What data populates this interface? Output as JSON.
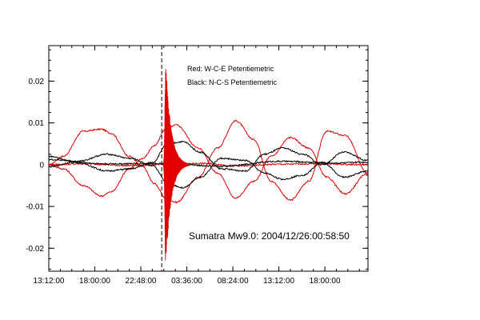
{
  "chart_data": {
    "type": "line",
    "title": "",
    "xlabel": "",
    "ylabel": "",
    "x_tick_labels": [
      "13:12:00",
      "18:00:00",
      "22:48:00",
      "03:36:00",
      "08:24:00",
      "13:12:00",
      "18:00:00"
    ],
    "x_unit": "hours since 2004/12/25 13:12:00",
    "x_ticks_hours": [
      0,
      4.8,
      9.6,
      14.4,
      19.2,
      24.0,
      28.8
    ],
    "xlim": [
      0,
      33.3
    ],
    "y_tick_labels": [
      "-0.02",
      "-0.01",
      "0",
      "0.01",
      "0.02"
    ],
    "y_ticks": [
      -0.02,
      -0.01,
      0,
      0.01,
      0.02
    ],
    "ylim": [
      -0.0255,
      0.0285
    ],
    "grid": false,
    "legend": [
      {
        "label": "Red: W-C-E Petentiemetric",
        "color": "#e00000"
      },
      {
        "label": "Black: N-C-S Petentiemetric",
        "color": "#000000"
      }
    ],
    "legend_placement": "top-center",
    "annotation": "Sumatra Mw9.0: 2004/12/26:00:58:50",
    "event_marker_hours": 11.78,
    "series": [
      {
        "color": "#e00000",
        "x": [
          0,
          1.5,
          3.6,
          5.5,
          6.5,
          8.4,
          9.8,
          11.0,
          12.2,
          13.3,
          15.6,
          17.6,
          19.5,
          21.4,
          23.2,
          25.2,
          27.1,
          29.0,
          30.9,
          33.3
        ],
        "y": [
          0.0,
          0.002,
          0.008,
          0.0085,
          0.0075,
          0.002,
          -0.0005,
          -0.0045,
          -0.008,
          -0.009,
          -0.003,
          0.004,
          0.0105,
          0.006,
          -0.004,
          -0.0085,
          -0.004,
          0.008,
          0.007,
          -0.002
        ]
      },
      {
        "color": "#e00000",
        "x": [
          0,
          1.5,
          3.6,
          5.5,
          6.5,
          8.4,
          9.8,
          11.0,
          12.2,
          13.3,
          15.6,
          17.6,
          19.5,
          21.4,
          23.2,
          25.2,
          27.1,
          29.0,
          30.9,
          33.3
        ],
        "y": [
          0.0,
          -0.001,
          -0.005,
          -0.0075,
          -0.0065,
          -0.001,
          0.0015,
          0.0045,
          0.0085,
          0.0095,
          0.004,
          -0.002,
          -0.008,
          -0.004,
          0.002,
          0.0065,
          0.004,
          -0.003,
          -0.007,
          -0.002
        ]
      },
      {
        "color": "#e00000",
        "x": [
          0,
          4.0,
          8.0,
          12.0,
          16.0,
          20.0,
          24.0,
          28.0,
          33.3
        ],
        "y": [
          0.0,
          0.0002,
          -0.0002,
          0.0,
          0.0003,
          -0.0003,
          0.0001,
          0.0002,
          0.0
        ]
      },
      {
        "color": "#000000",
        "x": [
          0,
          3.0,
          6.1,
          8.5,
          10.8,
          12.4,
          14.0,
          15.8,
          18.0,
          20.5,
          22.5,
          24.4,
          26.5,
          28.5,
          30.8,
          33.3
        ],
        "y": [
          0.002,
          0.0005,
          -0.0015,
          -0.001,
          0.0005,
          0.005,
          0.0055,
          0.003,
          -0.001,
          -0.0015,
          0.0025,
          0.004,
          0.0025,
          0.0,
          0.003,
          0.001
        ],
        "note_hidden": ""
      },
      {
        "color": "#000000",
        "x": [
          0,
          3.0,
          6.1,
          8.5,
          10.8,
          12.4,
          14.0,
          15.8,
          18.0,
          20.5,
          22.5,
          24.4,
          26.5,
          28.5,
          30.8,
          33.3
        ],
        "y": [
          -0.0005,
          0.0008,
          0.0025,
          0.0015,
          -0.0002,
          -0.0045,
          -0.0055,
          -0.003,
          0.0015,
          0.001,
          -0.002,
          -0.0035,
          -0.0025,
          0.0005,
          -0.003,
          -0.0015
        ]
      },
      {
        "color": "#000000",
        "x": [
          0,
          6.0,
          12.0,
          18.0,
          24.0,
          30.0,
          33.3
        ],
        "y": [
          0.0012,
          0.0002,
          0.0003,
          -0.0004,
          0.0008,
          0.0004,
          0.0006
        ]
      }
    ],
    "seismic_burst": {
      "color_red": "#e00000",
      "color_black": "#000000",
      "red_peak_positive": 0.025,
      "red_peak_negative": -0.0235,
      "start_hours": 11.9,
      "peak_hours": 12.2,
      "end_hours": 14.6
    }
  }
}
